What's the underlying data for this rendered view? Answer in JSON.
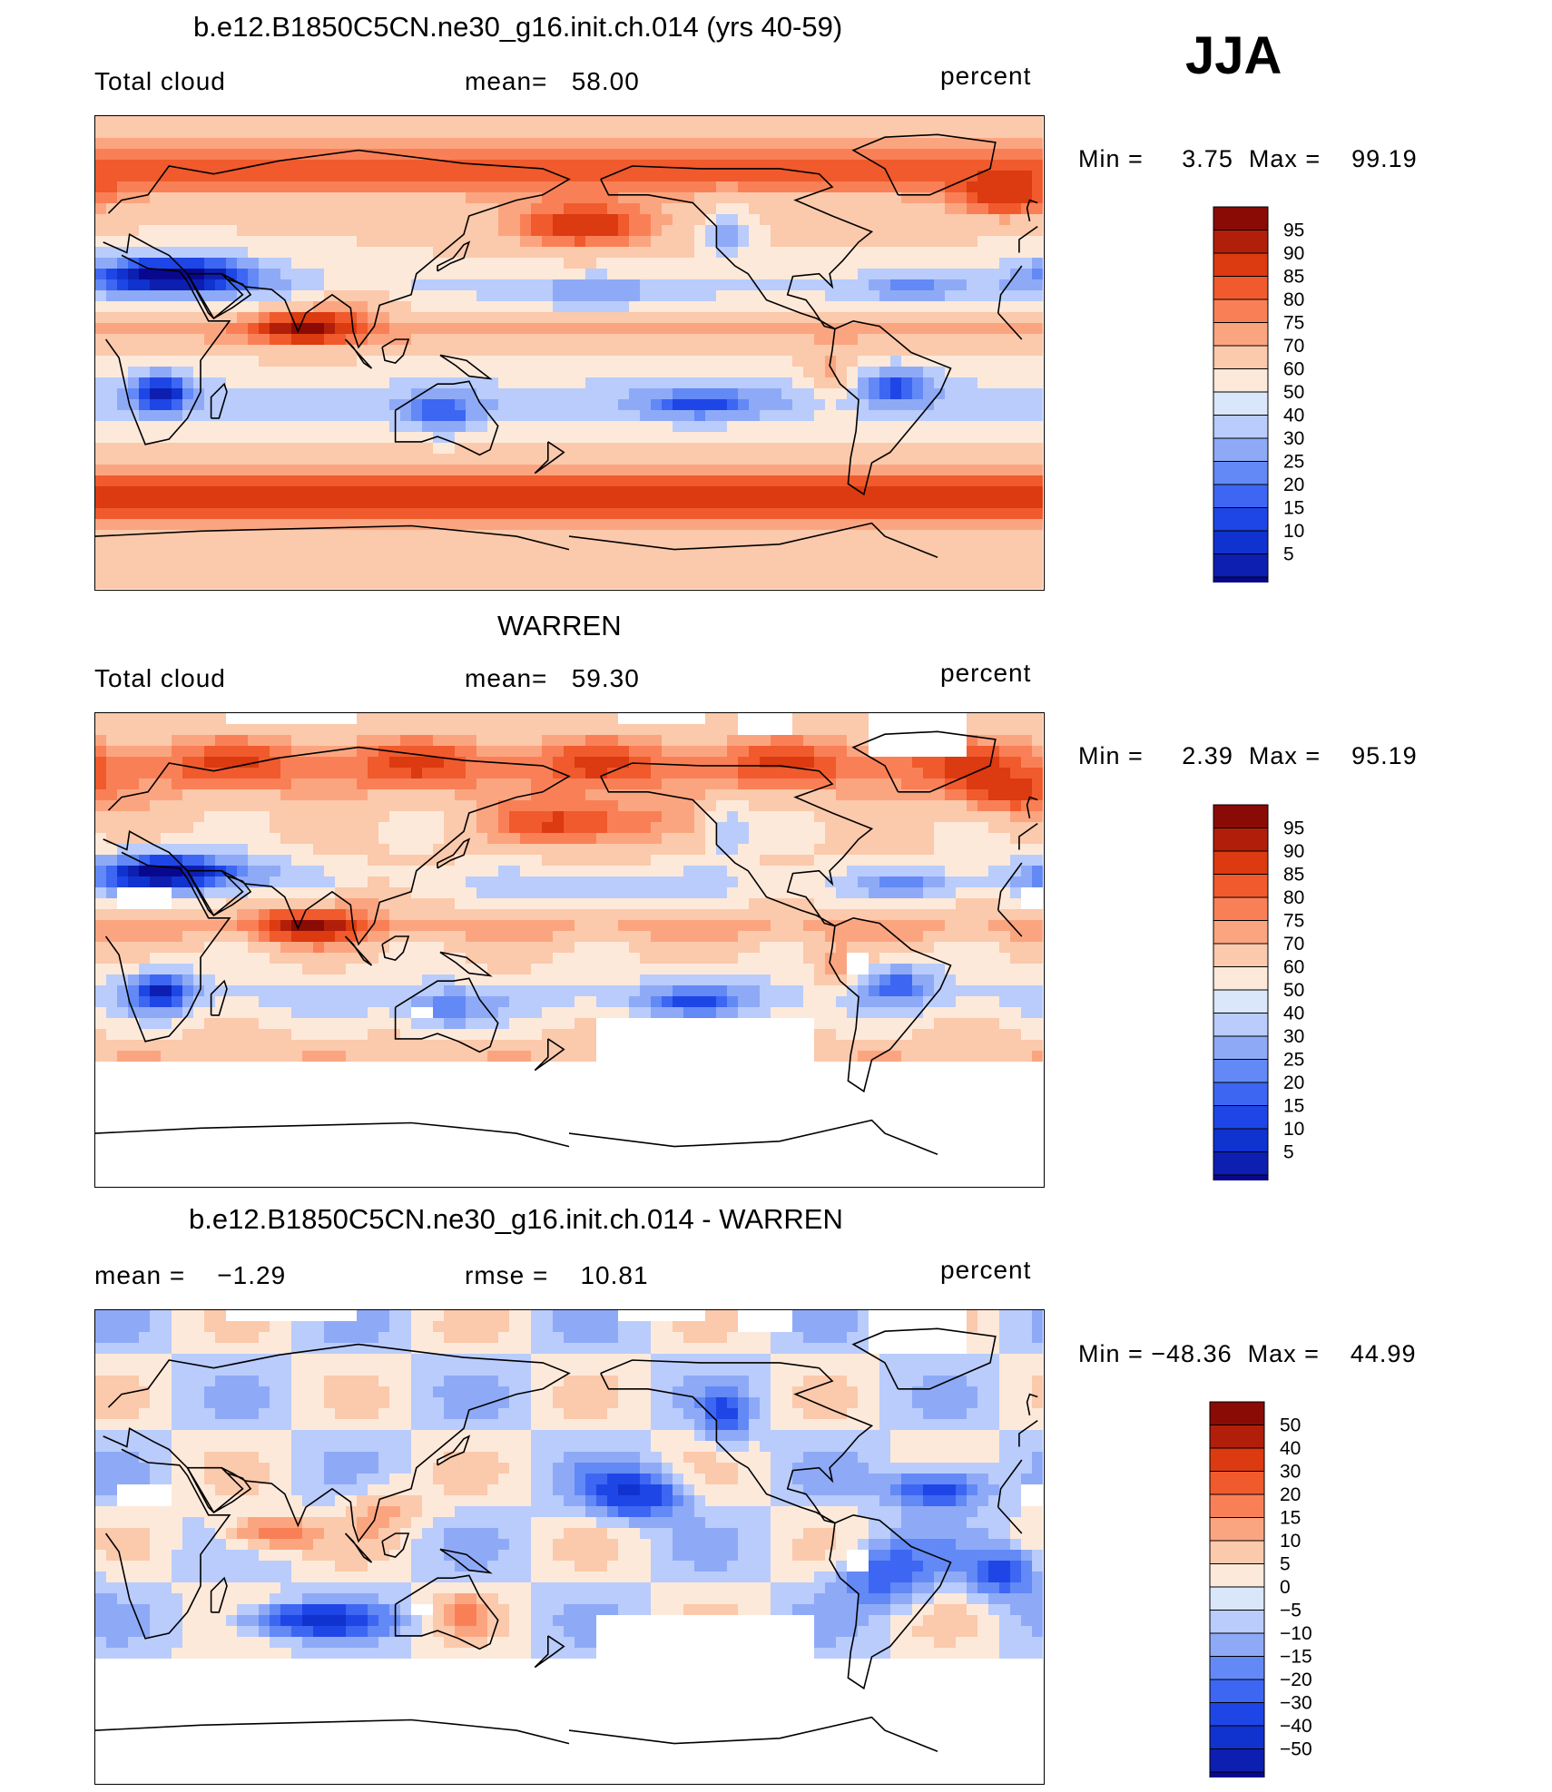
{
  "season": "JJA",
  "colors": {
    "abs_scale": [
      "#08088f",
      "#0d1fb0",
      "#1032cf",
      "#1e46e6",
      "#3d66f2",
      "#6289f5",
      "#8eaaf7",
      "#b9ccfb",
      "#dae7fb",
      "#fde9da",
      "#fbc9ab",
      "#fba580",
      "#f98056",
      "#f05a2c",
      "#dc3a10",
      "#b11e0a",
      "#8a0b05"
    ],
    "diff_scale": [
      "#08088f",
      "#0d1fb0",
      "#1032cf",
      "#1e46e6",
      "#3d66f2",
      "#6289f5",
      "#8eaaf7",
      "#b9ccfb",
      "#dae7fb",
      "#fde9da",
      "#fbc9ab",
      "#fba580",
      "#f98056",
      "#f05a2c",
      "#dc3a10",
      "#b11e0a",
      "#8a0b05"
    ]
  },
  "panels": [
    {
      "title": "b.e12.B1850C5CN.ne30_g16.init.ch.014 (yrs 40-59)",
      "left_label": "Total cloud",
      "center_label": "mean=   58.00",
      "units": "percent",
      "min_max": "Min =     3.75  Max =    99.19",
      "colorbar_labels": [
        "95",
        "90",
        "85",
        "80",
        "75",
        "70",
        "60",
        "50",
        "40",
        "30",
        "25",
        "20",
        "15",
        "10",
        "5"
      ]
    },
    {
      "title": "WARREN",
      "left_label": "Total cloud",
      "center_label": "mean=   59.30",
      "units": "percent",
      "min_max": "Min =     2.39  Max =    95.19",
      "colorbar_labels": [
        "95",
        "90",
        "85",
        "80",
        "75",
        "70",
        "60",
        "50",
        "40",
        "30",
        "25",
        "20",
        "15",
        "10",
        "5"
      ]
    },
    {
      "title": "b.e12.B1850C5CN.ne30_g16.init.ch.014 - WARREN",
      "left_label": "mean =    −1.29",
      "center_label": "rmse =    10.81",
      "units": "percent",
      "min_max": "Min = −48.36  Max =    44.99",
      "colorbar_labels": [
        "50",
        "40",
        "30",
        "20",
        "15",
        "10",
        "5",
        "0",
        "−5",
        "−10",
        "−15",
        "−20",
        "−30",
        "−40",
        "−50"
      ]
    }
  ]
}
